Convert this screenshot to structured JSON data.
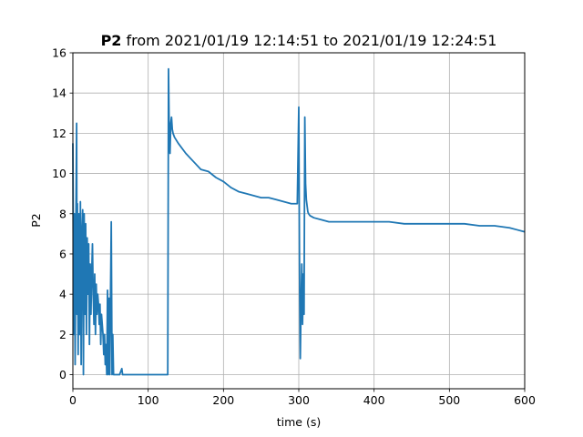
{
  "chart_data": {
    "type": "line",
    "title_bold": "P2",
    "title_rest": " from 2021/01/19 12:14:51 to 2021/01/19 12:24:51",
    "xlabel": "time (s)",
    "ylabel": "P2",
    "xlim": [
      0,
      600
    ],
    "ylim": [
      -0.7,
      16
    ],
    "xticks": [
      0,
      100,
      200,
      300,
      400,
      500,
      600
    ],
    "yticks": [
      0,
      2,
      4,
      6,
      8,
      10,
      12,
      14,
      16
    ],
    "grid": true,
    "color": "#1f77b4",
    "series": [
      {
        "x": [
          0,
          1,
          2,
          3,
          4,
          5,
          5.5,
          6,
          7,
          8,
          9,
          10,
          11,
          12,
          13,
          14,
          15,
          16,
          17,
          18,
          19,
          20,
          21,
          22,
          23,
          24,
          25,
          26,
          27,
          28,
          29,
          30,
          31,
          32,
          33,
          34,
          35,
          36,
          37,
          38,
          39,
          40,
          41,
          42,
          43,
          44,
          45,
          46,
          47,
          48,
          49,
          50,
          51,
          52,
          53,
          54,
          55,
          56,
          57,
          58,
          60,
          62,
          65,
          66,
          67,
          70,
          80,
          90,
          100,
          110,
          120,
          125,
          126,
          127,
          128,
          129,
          130,
          131,
          132,
          133,
          135,
          140,
          150,
          160,
          170,
          180,
          190,
          200,
          210,
          220,
          230,
          240,
          250,
          260,
          270,
          280,
          290,
          298,
          300,
          301,
          302,
          303,
          304,
          305,
          306,
          307,
          308,
          309,
          310,
          311,
          312,
          313,
          315,
          320,
          330,
          340,
          350,
          360,
          380,
          400,
          420,
          440,
          460,
          480,
          500,
          520,
          540,
          560,
          580,
          590,
          600
        ],
        "y": [
          11.5,
          2.0,
          8.0,
          0.5,
          7.5,
          12.5,
          3.0,
          8.5,
          1.0,
          8.0,
          2.0,
          8.6,
          0.5,
          7.0,
          8.2,
          0.0,
          8.0,
          3.0,
          7.5,
          2.0,
          6.8,
          4.0,
          6.5,
          1.5,
          5.5,
          3.0,
          5.0,
          6.5,
          4.0,
          2.5,
          5.0,
          2.0,
          4.5,
          3.0,
          4.0,
          3.5,
          2.5,
          3.5,
          1.5,
          3.0,
          2.5,
          2.0,
          1.0,
          2.0,
          0.5,
          1.5,
          0.0,
          4.2,
          0.0,
          3.8,
          0.0,
          4.0,
          7.6,
          0.0,
          2.0,
          0.0,
          0.0,
          0.0,
          0.0,
          0.0,
          0.0,
          0.0,
          0.3,
          0.0,
          0.0,
          0.0,
          0.0,
          0.0,
          0.0,
          0.0,
          0.0,
          0.0,
          0.0,
          15.2,
          12.0,
          11.0,
          12.5,
          12.8,
          12.2,
          12.0,
          11.8,
          11.5,
          11.0,
          10.6,
          10.2,
          10.1,
          9.8,
          9.6,
          9.3,
          9.1,
          9.0,
          8.9,
          8.8,
          8.8,
          8.7,
          8.6,
          8.5,
          8.5,
          13.3,
          5.0,
          0.8,
          3.5,
          5.5,
          2.5,
          5.0,
          3.0,
          12.8,
          9.5,
          8.7,
          8.4,
          8.1,
          8.0,
          7.9,
          7.8,
          7.7,
          7.6,
          7.6,
          7.6,
          7.6,
          7.6,
          7.6,
          7.5,
          7.5,
          7.5,
          7.5,
          7.5,
          7.4,
          7.4,
          7.3,
          7.2,
          7.1
        ]
      }
    ]
  }
}
